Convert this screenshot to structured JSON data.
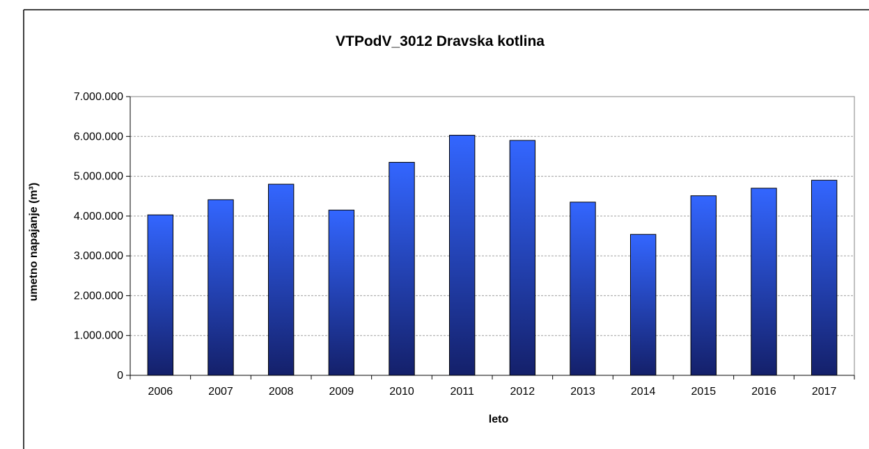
{
  "chart_data": {
    "type": "bar",
    "title": "VTPodV_3012 Dravska kotlina",
    "xlabel": "leto",
    "ylabel": "umetno napajanje (m³)",
    "categories": [
      "2006",
      "2007",
      "2008",
      "2009",
      "2010",
      "2011",
      "2012",
      "2013",
      "2014",
      "2015",
      "2016",
      "2017"
    ],
    "values": [
      4030000,
      4410000,
      4800000,
      4150000,
      5350000,
      6030000,
      5900000,
      4350000,
      3540000,
      4510000,
      4700000,
      4900000
    ],
    "ylim": [
      0,
      7000000
    ],
    "yticks": [
      0,
      1000000,
      2000000,
      3000000,
      4000000,
      5000000,
      6000000,
      7000000
    ],
    "ytick_labels": [
      "0",
      "1.000.000",
      "2.000.000",
      "3.000.000",
      "4.000.000",
      "5.000.000",
      "6.000.000",
      "7.000.000"
    ],
    "grid": true,
    "legend": "none",
    "colors": {
      "bar_top": "#3366ff",
      "bar_bottom": "#14206a",
      "grid": "#a0a0a0",
      "axis": "#000000"
    }
  }
}
